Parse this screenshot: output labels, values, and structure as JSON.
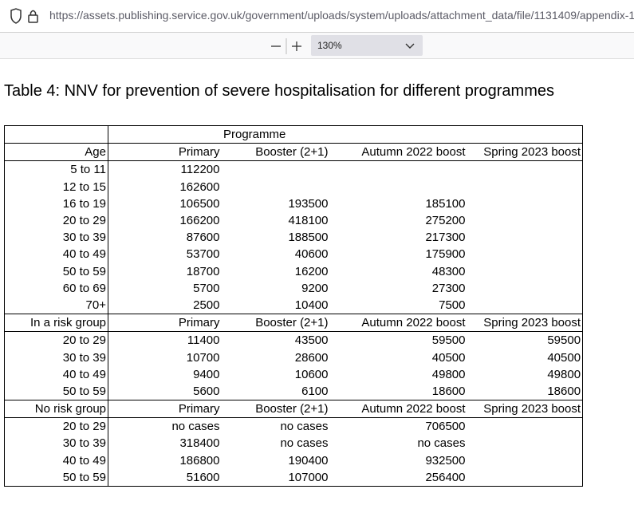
{
  "browser": {
    "url": "https://assets.publishing.service.gov.uk/government/uploads/system/uploads/attachment_data/file/1131409/appendix-1",
    "zoom": "130%"
  },
  "title": "Table 4: NNV for prevention of severe hospitalisation for different programmes",
  "table": {
    "programme_header": "Programme",
    "sections": [
      {
        "header": [
          "Age",
          "Primary",
          "Booster (2+1)",
          "Autumn 2022 boost",
          "Spring 2023 boost"
        ],
        "rows": [
          [
            "5 to 11",
            112200
          ],
          [
            "12 to 15",
            162600
          ],
          [
            "16 to 19",
            106500,
            193500,
            185100
          ],
          [
            "20 to 29",
            166200,
            418100,
            275200
          ],
          [
            "30 to 39",
            87600,
            188500,
            217300
          ],
          [
            "40 to 49",
            53700,
            40600,
            175900
          ],
          [
            "50 to 59",
            18700,
            16200,
            48300
          ],
          [
            "60 to 69",
            5700,
            9200,
            27300
          ],
          [
            "70+",
            2500,
            10400,
            7500
          ]
        ]
      },
      {
        "header": [
          "In a risk group",
          "Primary",
          "Booster (2+1)",
          "Autumn 2022 boost",
          "Spring 2023 boost"
        ],
        "rows": [
          [
            "20 to 29",
            11400,
            43500,
            59500,
            59500
          ],
          [
            "30 to 39",
            10700,
            28600,
            40500,
            40500
          ],
          [
            "40 to 49",
            9400,
            10600,
            49800,
            49800
          ],
          [
            "50 to 59",
            5600,
            6100,
            18600,
            18600
          ]
        ]
      },
      {
        "header": [
          "No risk group",
          "Primary",
          "Booster (2+1)",
          "Autumn 2022 boost",
          "Spring 2023 boost"
        ],
        "rows": [
          [
            "20 to 29",
            "no cases",
            "no cases",
            706500
          ],
          [
            "30 to 39",
            318400,
            "no cases",
            "no cases"
          ],
          [
            "40 to 49",
            186800,
            190400,
            932500
          ],
          [
            "50 to 59",
            51600,
            107000,
            256400
          ]
        ]
      }
    ]
  }
}
